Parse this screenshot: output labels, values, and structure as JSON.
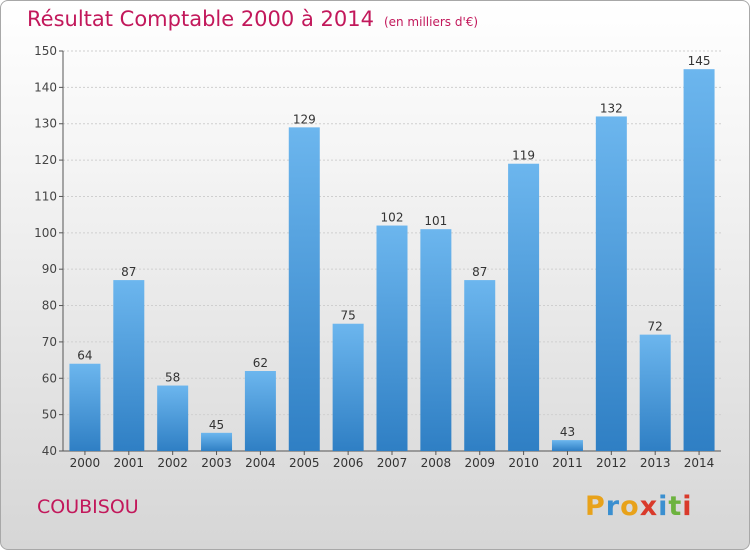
{
  "header": {
    "title": "Résultat Comptable 2000 à 2014",
    "subtitle": "(en milliers d'€)"
  },
  "commune": "COUBISOU",
  "logo": {
    "text": "Proxiti"
  },
  "colors": {
    "bar": "#3d93d8",
    "bar_light": "#6cb6ee",
    "title": "#c2185b"
  },
  "chart_data": {
    "type": "bar",
    "categories": [
      "2000",
      "2001",
      "2002",
      "2003",
      "2004",
      "2005",
      "2006",
      "2007",
      "2008",
      "2009",
      "2010",
      "2011",
      "2012",
      "2013",
      "2014"
    ],
    "values": [
      64,
      87,
      58,
      45,
      62,
      129,
      75,
      102,
      101,
      87,
      119,
      43,
      132,
      72,
      145
    ],
    "ylim": [
      40,
      150
    ],
    "yticks": [
      40,
      50,
      60,
      70,
      80,
      90,
      100,
      110,
      120,
      130,
      140,
      150
    ],
    "grid": true,
    "title": "Résultat Comptable 2000 à 2014",
    "xlabel": "",
    "ylabel": ""
  }
}
